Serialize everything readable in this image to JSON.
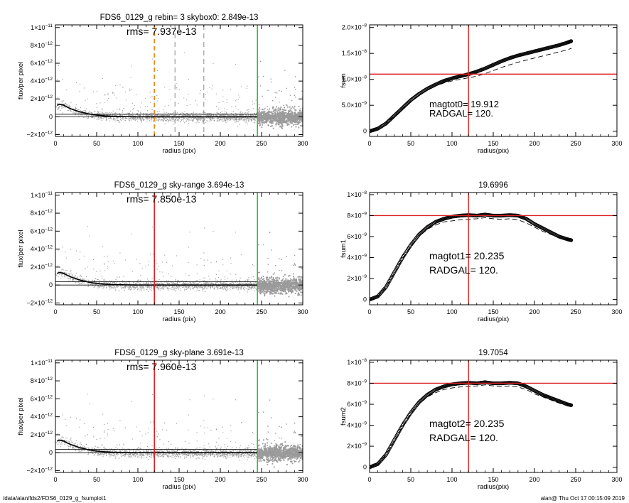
{
  "footer": {
    "path": "/data/alan/fds2/FDS6_0129_g_fsumplot1",
    "stamp": "alan@  Thu Oct 17 00:15:09 2019"
  },
  "colors": {
    "cursor_red": "#dd2222",
    "cursor_green": "#22cc22",
    "cursor_orange": "#ee8822",
    "scatter": "#9a9a9a",
    "profile": "#000000"
  },
  "chart_data": [
    {
      "type": "scatter",
      "title": "FDS6_0129_g rebin= 3    skybox0:  2.849e-13",
      "annotation": "rms= 7.937e-13",
      "xlabel": "radius (pix)",
      "ylabel": "flux/per pixel",
      "xlim": [
        0,
        300
      ],
      "ylim": [
        -2.2e-12,
        1.03e-11
      ],
      "x_ticks": [
        0,
        50,
        100,
        150,
        200,
        250,
        300
      ],
      "y_ticks": [
        -2e-12,
        0,
        2e-12,
        4e-12,
        6e-12,
        8e-12,
        1e-11
      ],
      "y_tick_labels": [
        {
          "mantissa": "−2×10",
          "exp": "−12"
        },
        {
          "mantissa": "0",
          "exp": ""
        },
        {
          "mantissa": "2×10",
          "exp": "−12"
        },
        {
          "mantissa": "4×10",
          "exp": "−12"
        },
        {
          "mantissa": "6×10",
          "exp": "−12"
        },
        {
          "mantissa": "8×10",
          "exp": "−12"
        },
        {
          "mantissa": "1×10",
          "exp": "−11"
        }
      ],
      "mean_profile": {
        "x": [
          2,
          5,
          10,
          15,
          20,
          30,
          40,
          50,
          60,
          70,
          80,
          100,
          120,
          150,
          200,
          245
        ],
        "y": [
          1.3e-12,
          1.4e-12,
          1.3e-12,
          1.05e-12,
          8.5e-13,
          5.5e-13,
          3.2e-13,
          1.8e-13,
          1e-13,
          5e-14,
          3e-14,
          0.0,
          0.0,
          0.0,
          0.0,
          0.0
        ]
      },
      "horizontal_lines": [
        2.849e-13,
        0
      ],
      "vertical_markers": [
        {
          "x": 120,
          "color": "#ee8822",
          "style": "dashed"
        },
        {
          "x": 145,
          "color": "#888888",
          "style": "dashed"
        },
        {
          "x": 180,
          "color": "#888888",
          "style": "dashed"
        },
        {
          "x": 245,
          "color": "#22cc22",
          "style": "solid"
        }
      ],
      "grid": false
    },
    {
      "type": "line",
      "title": "",
      "annotation_lines": [
        "magtot0=  19.912",
        "RADGAL=    120."
      ],
      "xlabel": "radius(pix)",
      "ylabel": "fsum",
      "xlim": [
        0,
        300
      ],
      "ylim": [
        -1e-09,
        2.05e-08
      ],
      "x_ticks": [
        0,
        50,
        100,
        150,
        200,
        250,
        300
      ],
      "y_ticks": [
        0,
        5e-09,
        1e-08,
        1.5e-08,
        2e-08
      ],
      "y_tick_labels": [
        {
          "mantissa": "0",
          "exp": ""
        },
        {
          "mantissa": "5.0×10",
          "exp": "−9"
        },
        {
          "mantissa": "1.0×10",
          "exp": "−8"
        },
        {
          "mantissa": "1.5×10",
          "exp": "−8"
        },
        {
          "mantissa": "2.0×10",
          "exp": "−8"
        }
      ],
      "series": [
        {
          "style": "circles",
          "x": [
            0,
            10,
            20,
            30,
            40,
            50,
            60,
            70,
            80,
            90,
            100,
            110,
            120,
            130,
            140,
            150,
            160,
            170,
            180,
            190,
            200,
            210,
            220,
            230,
            240,
            245
          ],
          "y": [
            0,
            5e-10,
            1.5e-09,
            3e-09,
            4.5e-09,
            6e-09,
            7.2e-09,
            8.2e-09,
            9e-09,
            9.7e-09,
            1.02e-08,
            1.06e-08,
            1.1e-08,
            1.15e-08,
            1.21e-08,
            1.28e-08,
            1.35e-08,
            1.41e-08,
            1.46e-08,
            1.5e-08,
            1.54e-08,
            1.58e-08,
            1.62e-08,
            1.66e-08,
            1.71e-08,
            1.74e-08
          ]
        },
        {
          "style": "dashed",
          "x": [
            0,
            10,
            20,
            30,
            40,
            50,
            60,
            70,
            80,
            90,
            100,
            110,
            120,
            130,
            140,
            150,
            160,
            170,
            180,
            190,
            200,
            210,
            220,
            230,
            240,
            245
          ],
          "y": [
            0,
            5e-10,
            1.5e-09,
            2.9e-09,
            4.4e-09,
            5.8e-09,
            7e-09,
            8e-09,
            8.7e-09,
            9.3e-09,
            9.7e-09,
            1e-08,
            1.03e-08,
            1.06e-08,
            1.11e-08,
            1.17e-08,
            1.23e-08,
            1.28e-08,
            1.33e-08,
            1.37e-08,
            1.41e-08,
            1.45e-08,
            1.49e-08,
            1.53e-08,
            1.57e-08,
            1.6e-08
          ]
        }
      ],
      "crosshair": {
        "x": 120,
        "y": 1.1e-08,
        "color": "#dd2222"
      },
      "grid": false
    },
    {
      "type": "scatter",
      "title": "FDS6_0129_g sky-range  3.694e-13",
      "annotation": "rms= 7.850e-13",
      "xlabel": "radius (pix)",
      "ylabel": "flux/per pixel",
      "xlim": [
        0,
        300
      ],
      "ylim": [
        -2.2e-12,
        1.03e-11
      ],
      "x_ticks": [
        0,
        50,
        100,
        150,
        200,
        250,
        300
      ],
      "y_ticks": [
        -2e-12,
        0,
        2e-12,
        4e-12,
        6e-12,
        8e-12,
        1e-11
      ],
      "y_tick_labels": [
        {
          "mantissa": "−2×10",
          "exp": "−12"
        },
        {
          "mantissa": "0",
          "exp": ""
        },
        {
          "mantissa": "2×10",
          "exp": "−12"
        },
        {
          "mantissa": "4×10",
          "exp": "−12"
        },
        {
          "mantissa": "6×10",
          "exp": "−12"
        },
        {
          "mantissa": "8×10",
          "exp": "−12"
        },
        {
          "mantissa": "1×10",
          "exp": "−11"
        }
      ],
      "mean_profile": {
        "x": [
          2,
          5,
          10,
          15,
          20,
          30,
          40,
          50,
          60,
          70,
          80,
          100,
          120,
          150,
          200,
          245
        ],
        "y": [
          1.3e-12,
          1.4e-12,
          1.3e-12,
          1.05e-12,
          8.5e-13,
          5.5e-13,
          3.2e-13,
          1.8e-13,
          1e-13,
          5e-14,
          3e-14,
          0.0,
          0.0,
          0.0,
          0.0,
          0.0
        ]
      },
      "horizontal_lines": [
        3.694e-13,
        0
      ],
      "vertical_markers": [
        {
          "x": 120,
          "color": "#dd2222",
          "style": "solid"
        },
        {
          "x": 245,
          "color": "#22cc22",
          "style": "solid"
        }
      ],
      "grid": false
    },
    {
      "type": "line",
      "title": "19.6996",
      "annotation_lines": [
        "magtot1=  20.235",
        "RADGAL=    120."
      ],
      "xlabel": "radius(pix)",
      "ylabel": "fsum1",
      "xlim": [
        0,
        300
      ],
      "ylim": [
        -5e-10,
        1.02e-08
      ],
      "x_ticks": [
        0,
        50,
        100,
        150,
        200,
        250,
        300
      ],
      "y_ticks": [
        0,
        2e-09,
        4e-09,
        6e-09,
        8e-09,
        1e-08
      ],
      "y_tick_labels": [
        {
          "mantissa": "0",
          "exp": ""
        },
        {
          "mantissa": "2×10",
          "exp": "−9"
        },
        {
          "mantissa": "4×10",
          "exp": "−9"
        },
        {
          "mantissa": "6×10",
          "exp": "−9"
        },
        {
          "mantissa": "8×10",
          "exp": "−9"
        },
        {
          "mantissa": "1×10",
          "exp": "−8"
        }
      ],
      "series": [
        {
          "style": "circles",
          "x": [
            0,
            10,
            20,
            30,
            40,
            50,
            60,
            70,
            80,
            90,
            100,
            110,
            120,
            130,
            140,
            150,
            160,
            170,
            180,
            190,
            200,
            210,
            220,
            230,
            240,
            245
          ],
          "y": [
            0,
            3e-10,
            1.2e-09,
            2.6e-09,
            4e-09,
            5.2e-09,
            6.2e-09,
            6.9e-09,
            7.4e-09,
            7.7e-09,
            7.9e-09,
            8e-09,
            8.05e-09,
            8e-09,
            8.1e-09,
            8e-09,
            8e-09,
            8.05e-09,
            8e-09,
            7.7e-09,
            7.2e-09,
            6.8e-09,
            6.4e-09,
            6e-09,
            5.75e-09,
            5.65e-09
          ]
        },
        {
          "style": "dashed",
          "x": [
            0,
            10,
            20,
            30,
            40,
            50,
            60,
            70,
            80,
            90,
            100,
            110,
            120,
            130,
            140,
            150,
            160,
            170,
            180,
            190,
            200,
            210,
            220,
            230,
            240,
            245
          ],
          "y": [
            0,
            3e-10,
            1.2e-09,
            2.5e-09,
            3.9e-09,
            5.1e-09,
            6e-09,
            6.7e-09,
            7.1e-09,
            7.4e-09,
            7.5e-09,
            7.6e-09,
            7.65e-09,
            7.7e-09,
            7.8e-09,
            7.7e-09,
            7.65e-09,
            7.7e-09,
            7.6e-09,
            7.3e-09,
            6.9e-09,
            6.5e-09,
            6.2e-09,
            5.9e-09,
            5.7e-09,
            5.6e-09
          ]
        }
      ],
      "crosshair": {
        "x": 120,
        "y": 8e-09,
        "color": "#dd2222"
      },
      "grid": false
    },
    {
      "type": "scatter",
      "title": "FDS6_0129_g sky-plane  3.691e-13",
      "annotation": "rms= 7.960e-13",
      "xlabel": "radius (pix)",
      "ylabel": "flux/per pixel",
      "xlim": [
        0,
        300
      ],
      "ylim": [
        -2.2e-12,
        1.03e-11
      ],
      "x_ticks": [
        0,
        50,
        100,
        150,
        200,
        250,
        300
      ],
      "y_ticks": [
        -2e-12,
        0,
        2e-12,
        4e-12,
        6e-12,
        8e-12,
        1e-11
      ],
      "y_tick_labels": [
        {
          "mantissa": "−2×10",
          "exp": "−12"
        },
        {
          "mantissa": "0",
          "exp": ""
        },
        {
          "mantissa": "2×10",
          "exp": "−12"
        },
        {
          "mantissa": "4×10",
          "exp": "−12"
        },
        {
          "mantissa": "6×10",
          "exp": "−12"
        },
        {
          "mantissa": "8×10",
          "exp": "−12"
        },
        {
          "mantissa": "1×10",
          "exp": "−11"
        }
      ],
      "mean_profile": {
        "x": [
          2,
          5,
          10,
          15,
          20,
          30,
          40,
          50,
          60,
          70,
          80,
          100,
          120,
          150,
          200,
          245
        ],
        "y": [
          1.3e-12,
          1.4e-12,
          1.3e-12,
          1.05e-12,
          8.5e-13,
          5.5e-13,
          3.2e-13,
          1.8e-13,
          1e-13,
          5e-14,
          3e-14,
          0.0,
          0.0,
          0.0,
          0.0,
          0.0
        ]
      },
      "horizontal_lines": [
        3.691e-13,
        0
      ],
      "vertical_markers": [
        {
          "x": 120,
          "color": "#dd2222",
          "style": "solid"
        },
        {
          "x": 245,
          "color": "#22cc22",
          "style": "solid"
        }
      ],
      "grid": false
    },
    {
      "type": "line",
      "title": "19.7054",
      "annotation_lines": [
        "magtot2=  20.235",
        "RADGAL=    120."
      ],
      "xlabel": "radius(pix)",
      "ylabel": "fsum2",
      "xlim": [
        0,
        300
      ],
      "ylim": [
        -5e-10,
        1.02e-08
      ],
      "x_ticks": [
        0,
        50,
        100,
        150,
        200,
        250,
        300
      ],
      "y_ticks": [
        0,
        2e-09,
        4e-09,
        6e-09,
        8e-09,
        1e-08
      ],
      "y_tick_labels": [
        {
          "mantissa": "0",
          "exp": ""
        },
        {
          "mantissa": "2×10",
          "exp": "−9"
        },
        {
          "mantissa": "4×10",
          "exp": "−9"
        },
        {
          "mantissa": "6×10",
          "exp": "−9"
        },
        {
          "mantissa": "8×10",
          "exp": "−9"
        },
        {
          "mantissa": "1×10",
          "exp": "−8"
        }
      ],
      "series": [
        {
          "style": "circles",
          "x": [
            0,
            10,
            20,
            30,
            40,
            50,
            60,
            70,
            80,
            90,
            100,
            110,
            120,
            130,
            140,
            150,
            160,
            170,
            180,
            190,
            200,
            210,
            220,
            230,
            240,
            245
          ],
          "y": [
            0,
            3e-10,
            1.2e-09,
            2.6e-09,
            4e-09,
            5.2e-09,
            6.2e-09,
            6.9e-09,
            7.4e-09,
            7.7e-09,
            7.9e-09,
            8e-09,
            8.05e-09,
            8e-09,
            8.1e-09,
            8e-09,
            8e-09,
            8.05e-09,
            8e-09,
            7.7e-09,
            7.3e-09,
            6.9e-09,
            6.6e-09,
            6.3e-09,
            6e-09,
            5.9e-09
          ]
        },
        {
          "style": "dashed",
          "x": [
            0,
            10,
            20,
            30,
            40,
            50,
            60,
            70,
            80,
            90,
            100,
            110,
            120,
            130,
            140,
            150,
            160,
            170,
            180,
            190,
            200,
            210,
            220,
            230,
            240,
            245
          ],
          "y": [
            0,
            3e-10,
            1.2e-09,
            2.5e-09,
            3.9e-09,
            5.1e-09,
            6e-09,
            6.7e-09,
            7.1e-09,
            7.4e-09,
            7.55e-09,
            7.65e-09,
            7.7e-09,
            7.75e-09,
            7.85e-09,
            7.75e-09,
            7.7e-09,
            7.75e-09,
            7.65e-09,
            7.4e-09,
            7e-09,
            6.7e-09,
            6.4e-09,
            6.1e-09,
            5.85e-09,
            5.75e-09
          ]
        }
      ],
      "crosshair": {
        "x": 120,
        "y": 8e-09,
        "color": "#dd2222"
      },
      "grid": false
    }
  ]
}
